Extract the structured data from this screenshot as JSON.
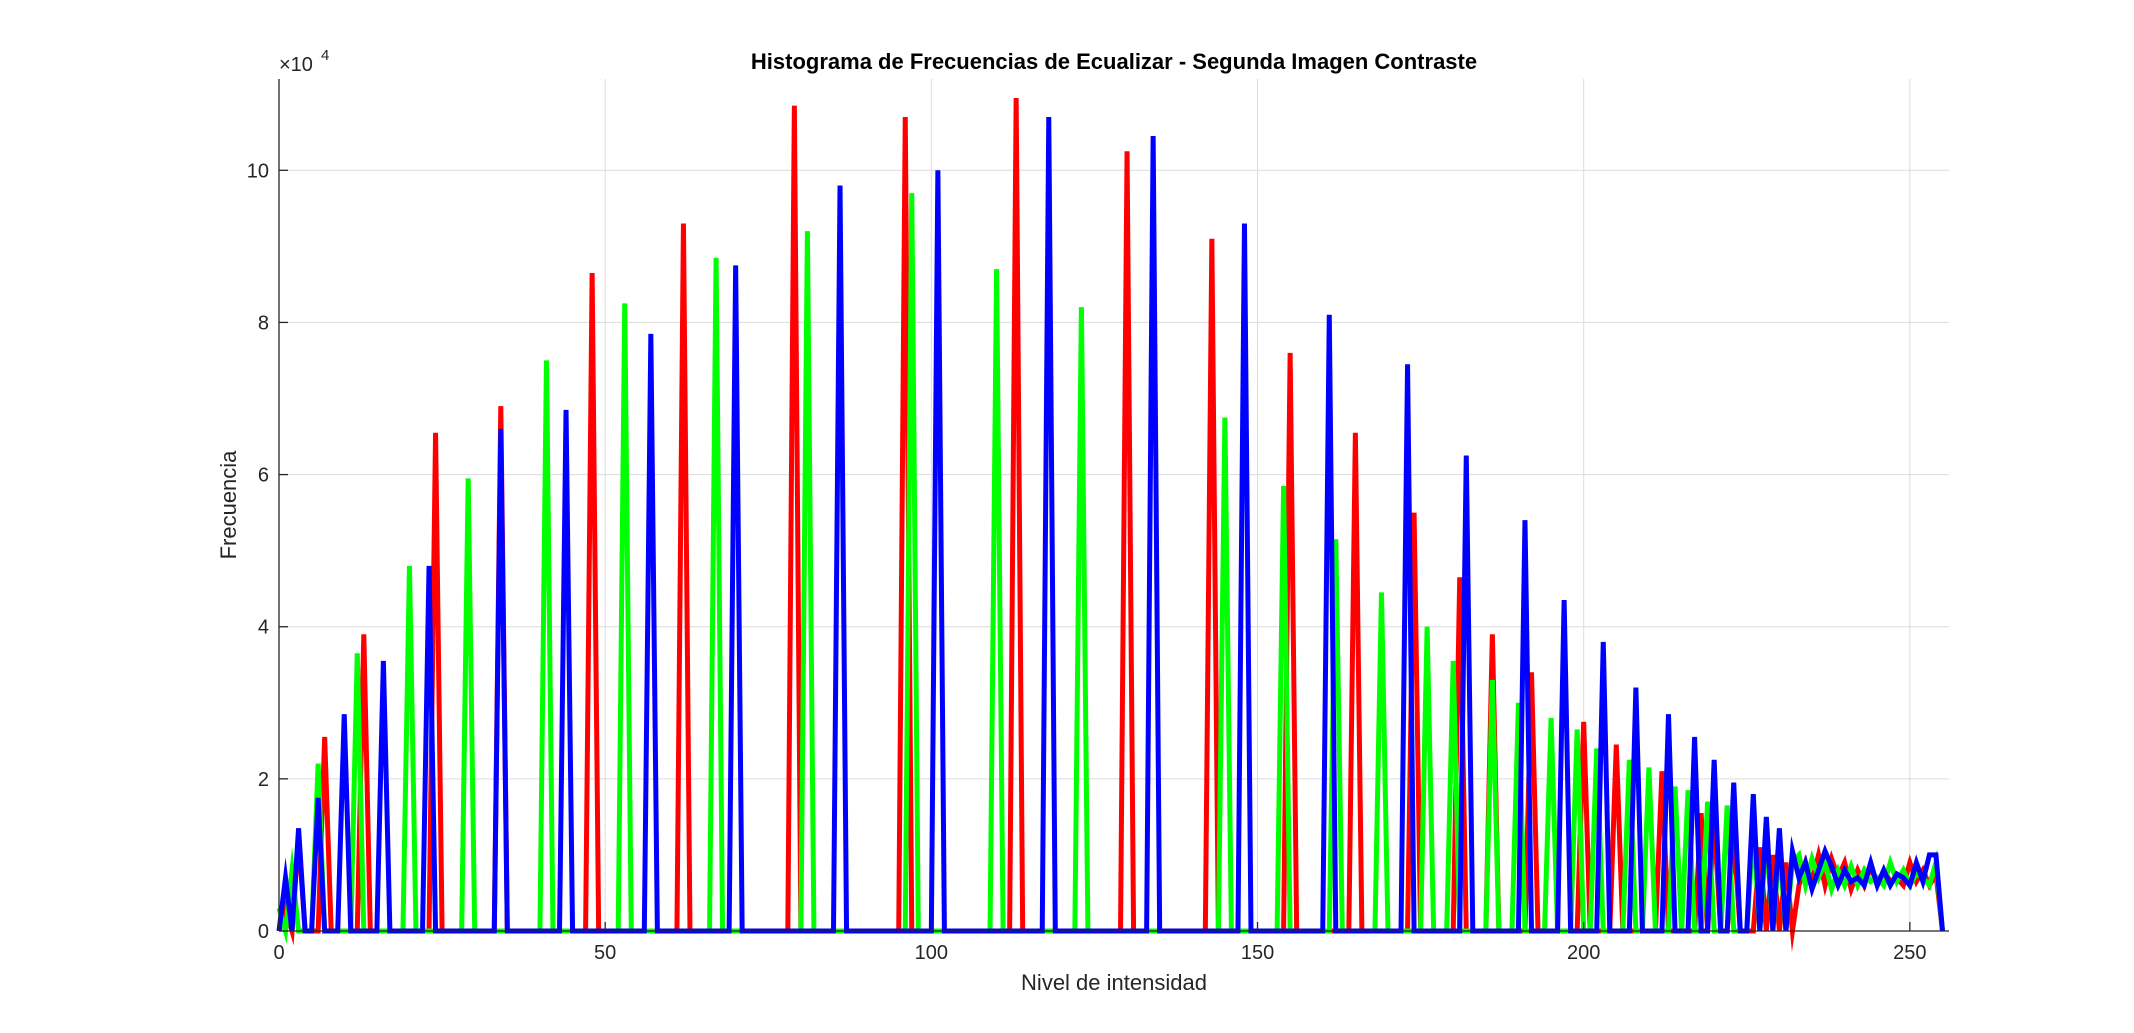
{
  "chart_data": {
    "type": "line",
    "title": "Histograma de Frecuencias de Ecualizar - Segunda Imagen Contraste",
    "xlabel": "Nivel de intensidad",
    "ylabel": "Frecuencia",
    "exponent_label": "×10",
    "exponent_power": "4",
    "xlim": [
      0,
      256
    ],
    "ylim": [
      0,
      112000
    ],
    "grid": true,
    "x_ticks": [
      0,
      50,
      100,
      150,
      200,
      250
    ],
    "x_tick_labels": [
      "0",
      "50",
      "100",
      "150",
      "200",
      "250"
    ],
    "y_ticks": [
      0,
      20000,
      40000,
      60000,
      80000,
      100000
    ],
    "y_tick_labels": [
      "0",
      "2",
      "4",
      "6",
      "8",
      "10"
    ],
    "baseline": [
      0,
      1500
    ],
    "tail_start": 233,
    "tail_values": [
      6000,
      9000,
      6500,
      10000,
      6000,
      9500,
      7000,
      9000,
      5500,
      8000,
      6000,
      8500,
      6000,
      8000,
      6500,
      7000,
      6000,
      9000,
      6500,
      8000,
      6000,
      7500,
      7000
    ],
    "series": [
      {
        "color": "#ff0000",
        "peaks": [
          [
            1,
            3000
          ],
          [
            3,
            12500
          ],
          [
            7,
            25500
          ],
          [
            13,
            39000
          ],
          [
            24,
            65500
          ],
          [
            34,
            69000
          ],
          [
            48,
            86500
          ],
          [
            62,
            93000
          ],
          [
            79,
            108500
          ],
          [
            96,
            107000
          ],
          [
            113,
            109500
          ],
          [
            130,
            102500
          ],
          [
            143,
            91000
          ],
          [
            155,
            76000
          ],
          [
            165,
            65500
          ],
          [
            174,
            55000
          ],
          [
            181,
            46500
          ],
          [
            186,
            39000
          ],
          [
            192,
            34000
          ],
          [
            200,
            27500
          ],
          [
            205,
            24500
          ],
          [
            212,
            21000
          ],
          [
            218,
            15500
          ],
          [
            220,
            14500
          ],
          [
            223,
            12500
          ],
          [
            227,
            11000
          ],
          [
            229,
            10000
          ],
          [
            231,
            9000
          ]
        ]
      },
      {
        "color": "#00ff00",
        "peaks": [
          [
            0,
            3000
          ],
          [
            2,
            8000
          ],
          [
            6,
            22000
          ],
          [
            12,
            36500
          ],
          [
            20,
            48000
          ],
          [
            29,
            59500
          ],
          [
            41,
            75000
          ],
          [
            53,
            82500
          ],
          [
            67,
            88500
          ],
          [
            81,
            92000
          ],
          [
            97,
            97000
          ],
          [
            110,
            87000
          ],
          [
            123,
            82000
          ],
          [
            145,
            67500
          ],
          [
            154,
            58500
          ],
          [
            162,
            51500
          ],
          [
            169,
            44500
          ],
          [
            176,
            40000
          ],
          [
            180,
            35500
          ],
          [
            186,
            33000
          ],
          [
            190,
            30000
          ],
          [
            195,
            28000
          ],
          [
            199,
            26500
          ],
          [
            202,
            24000
          ],
          [
            207,
            22500
          ],
          [
            210,
            21500
          ],
          [
            214,
            19000
          ],
          [
            216,
            18500
          ],
          [
            219,
            17000
          ],
          [
            222,
            16500
          ],
          [
            226,
            13500
          ],
          [
            228,
            12500
          ],
          [
            230,
            11000
          ],
          [
            232,
            9000
          ]
        ]
      },
      {
        "color": "#0000ff",
        "peaks": [
          [
            1,
            7000
          ],
          [
            3,
            13500
          ],
          [
            6,
            17500
          ],
          [
            10,
            28500
          ],
          [
            16,
            35500
          ],
          [
            23,
            48000
          ],
          [
            34,
            66000
          ],
          [
            44,
            68500
          ],
          [
            57,
            78500
          ],
          [
            70,
            87500
          ],
          [
            86,
            98000
          ],
          [
            101,
            100000
          ],
          [
            118,
            107000
          ],
          [
            134,
            104500
          ],
          [
            148,
            93000
          ],
          [
            161,
            81000
          ],
          [
            173,
            74500
          ],
          [
            182,
            62500
          ],
          [
            191,
            54000
          ],
          [
            197,
            43500
          ],
          [
            203,
            38000
          ],
          [
            208,
            32000
          ],
          [
            213,
            28500
          ],
          [
            217,
            25500
          ],
          [
            220,
            22500
          ],
          [
            223,
            19500
          ],
          [
            226,
            18000
          ],
          [
            228,
            15000
          ],
          [
            230,
            13500
          ],
          [
            232,
            10500
          ],
          [
            234,
            9000
          ],
          [
            237,
            10500
          ],
          [
            240,
            8000
          ],
          [
            245,
            6000
          ],
          [
            249,
            7000
          ],
          [
            254,
            10000
          ],
          [
            255,
            0
          ]
        ]
      }
    ]
  }
}
